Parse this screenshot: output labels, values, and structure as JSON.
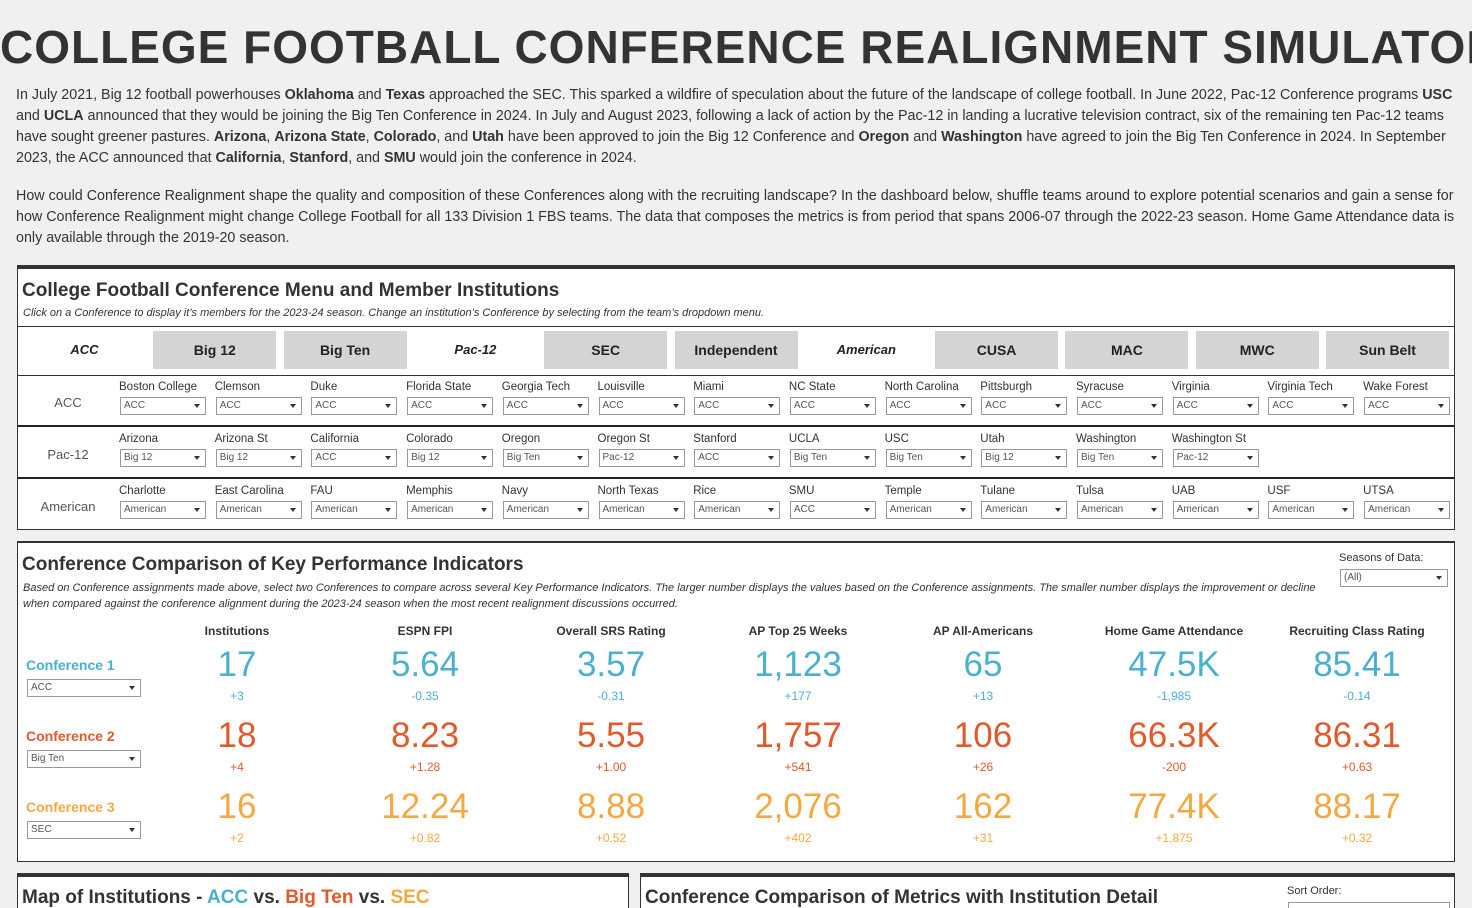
{
  "title": "COLLEGE FOOTBALL CONFERENCE REALIGNMENT SIMULATOR",
  "intro": [
    [
      {
        "text": "In July 2021, Big 12 football powerhouses "
      },
      {
        "text": "Oklahoma",
        "bold": true
      },
      {
        "text": " and "
      },
      {
        "text": "Texas",
        "bold": true
      },
      {
        "text": " approached the SEC. This sparked a wildfire of speculation about the future of the landscape of college football. In June 2022, Pac-12 Conference programs "
      },
      {
        "text": "USC",
        "bold": true
      },
      {
        "text": " and "
      },
      {
        "text": "UCLA",
        "bold": true
      },
      {
        "text": " announced that they would be joining the Big Ten Conference in 2024. In July and August 2023, following a lack of action by the Pac-12 in landing a lucrative television contract, six of the remaining ten Pac-12 teams have sought greener pastures. "
      },
      {
        "text": "Arizona",
        "bold": true
      },
      {
        "text": ", "
      },
      {
        "text": "Arizona State",
        "bold": true
      },
      {
        "text": ", "
      },
      {
        "text": "Colorado",
        "bold": true
      },
      {
        "text": ", and "
      },
      {
        "text": "Utah",
        "bold": true
      },
      {
        "text": " have been approved to join the Big 12 Conference and "
      },
      {
        "text": "Oregon",
        "bold": true
      },
      {
        "text": " and "
      },
      {
        "text": "Washington",
        "bold": true
      },
      {
        "text": " have agreed to join the Big Ten Conference in 2024. In September 2023, the ACC announced that "
      },
      {
        "text": "California",
        "bold": true
      },
      {
        "text": ", "
      },
      {
        "text": "Stanford",
        "bold": true
      },
      {
        "text": ", and "
      },
      {
        "text": "SMU",
        "bold": true
      },
      {
        "text": " would join the conference in 2024."
      }
    ],
    [
      {
        "text": "How could Conference Realignment shape the quality and composition of these Conferences along with the recruiting landscape? In the dashboard below, shuffle teams around to explore potential scenarios and gain a sense for how Conference Realignment might change College Football for all 133 Division 1 FBS teams. The data that composes the metrics is from period that spans 2006-07 through the 2022-23 season. Home Game Attendance data is only available through the 2019-20 season."
      }
    ]
  ],
  "menu": {
    "title": "College Football Conference Menu and Member Institutions",
    "subtitle": "Click on a Conference to display it’s members for the 2023-24 season. Change an institution’s Conference by selecting from the team’s dropdown menu.",
    "tabs": [
      {
        "label": "ACC",
        "selected": true
      },
      {
        "label": "Big 12"
      },
      {
        "label": "Big Ten"
      },
      {
        "label": "Pac-12",
        "selected": true
      },
      {
        "label": "SEC"
      },
      {
        "label": "Independent"
      },
      {
        "label": "American",
        "selected": true
      },
      {
        "label": "CUSA"
      },
      {
        "label": "MAC"
      },
      {
        "label": "MWC"
      },
      {
        "label": "Sun Belt"
      }
    ],
    "rows": [
      {
        "conference": "ACC",
        "teams": [
          {
            "name": "Boston College",
            "value": "ACC"
          },
          {
            "name": "Clemson",
            "value": "ACC"
          },
          {
            "name": "Duke",
            "value": "ACC"
          },
          {
            "name": "Florida State",
            "value": "ACC"
          },
          {
            "name": "Georgia Tech",
            "value": "ACC"
          },
          {
            "name": "Louisville",
            "value": "ACC"
          },
          {
            "name": "Miami",
            "value": "ACC"
          },
          {
            "name": "NC State",
            "value": "ACC"
          },
          {
            "name": "North Carolina",
            "value": "ACC"
          },
          {
            "name": "Pittsburgh",
            "value": "ACC"
          },
          {
            "name": "Syracuse",
            "value": "ACC"
          },
          {
            "name": "Virginia",
            "value": "ACC"
          },
          {
            "name": "Virginia Tech",
            "value": "ACC"
          },
          {
            "name": "Wake Forest",
            "value": "ACC"
          }
        ]
      },
      {
        "conference": "Pac-12",
        "teams": [
          {
            "name": "Arizona",
            "value": "Big 12"
          },
          {
            "name": "Arizona St",
            "value": "Big 12"
          },
          {
            "name": "California",
            "value": "ACC"
          },
          {
            "name": "Colorado",
            "value": "Big 12"
          },
          {
            "name": "Oregon",
            "value": "Big Ten"
          },
          {
            "name": "Oregon St",
            "value": "Pac-12"
          },
          {
            "name": "Stanford",
            "value": "ACC"
          },
          {
            "name": "UCLA",
            "value": "Big Ten"
          },
          {
            "name": "USC",
            "value": "Big Ten"
          },
          {
            "name": "Utah",
            "value": "Big 12"
          },
          {
            "name": "Washington",
            "value": "Big Ten"
          },
          {
            "name": "Washington St",
            "value": "Pac-12"
          }
        ]
      },
      {
        "conference": "American",
        "teams": [
          {
            "name": "Charlotte",
            "value": "American"
          },
          {
            "name": "East Carolina",
            "value": "American"
          },
          {
            "name": "FAU",
            "value": "American"
          },
          {
            "name": "Memphis",
            "value": "American"
          },
          {
            "name": "Navy",
            "value": "American"
          },
          {
            "name": "North Texas",
            "value": "American"
          },
          {
            "name": "Rice",
            "value": "American"
          },
          {
            "name": "SMU",
            "value": "ACC"
          },
          {
            "name": "Temple",
            "value": "American"
          },
          {
            "name": "Tulane",
            "value": "American"
          },
          {
            "name": "Tulsa",
            "value": "American"
          },
          {
            "name": "UAB",
            "value": "American"
          },
          {
            "name": "USF",
            "value": "American"
          },
          {
            "name": "UTSA",
            "value": "American"
          }
        ]
      }
    ]
  },
  "kpi": {
    "title": "Conference Comparison of Key Performance Indicators",
    "subtitle": "Based on Conference assignments made above, select two Conferences to compare across several Key Performance Indicators. The larger number displays the values based on the Conference assignments. The smaller number displays the improvement or decline when compared against the conference alignment during the 2023-24 season when the most recent realignment discussions occurred.",
    "seasons_label": "Seasons of Data:",
    "seasons_value": "(All)",
    "metrics": [
      "Institutions",
      "ESPN FPI",
      "Overall SRS Rating",
      "AP Top 25 Weeks",
      "AP All-Americans",
      "Home Game Attendance",
      "Recruiting Class Rating"
    ],
    "conferences": [
      {
        "label": "Conference 1",
        "select": "ACC",
        "color": "#4bafd0",
        "values": [
          "17",
          "5.64",
          "3.57",
          "1,123",
          "65",
          "47.5K",
          "85.41"
        ],
        "changes": [
          "+3",
          "-0.35",
          "-0.31",
          "+177",
          "+13",
          "-1,985",
          "-0.14"
        ]
      },
      {
        "label": "Conference 2",
        "select": "Big Ten",
        "color": "#e05a2c",
        "values": [
          "18",
          "8.23",
          "5.55",
          "1,757",
          "106",
          "66.3K",
          "86.31"
        ],
        "changes": [
          "+4",
          "+1.28",
          "+1.00",
          "+541",
          "+26",
          "-200",
          "+0.63"
        ]
      },
      {
        "label": "Conference 3",
        "select": "SEC",
        "color": "#f5a840",
        "values": [
          "16",
          "12.24",
          "8.88",
          "2,076",
          "162",
          "77.4K",
          "88.17"
        ],
        "changes": [
          "+2",
          "+0.82",
          "+0.52",
          "+402",
          "+31",
          "+1,875",
          "+0.32"
        ]
      }
    ]
  },
  "map": {
    "title_parts": [
      {
        "text": "Map of Institutions - "
      },
      {
        "text": "ACC",
        "color": "#4bafd0"
      },
      {
        "text": " vs. "
      },
      {
        "text": "Big Ten",
        "color": "#e05a2c"
      },
      {
        "text": " vs. "
      },
      {
        "text": "SEC",
        "color": "#f5a840"
      }
    ]
  },
  "detail": {
    "title": "Conference Comparison of Metrics with Institution Detail",
    "sort_label": "Sort Order:"
  }
}
